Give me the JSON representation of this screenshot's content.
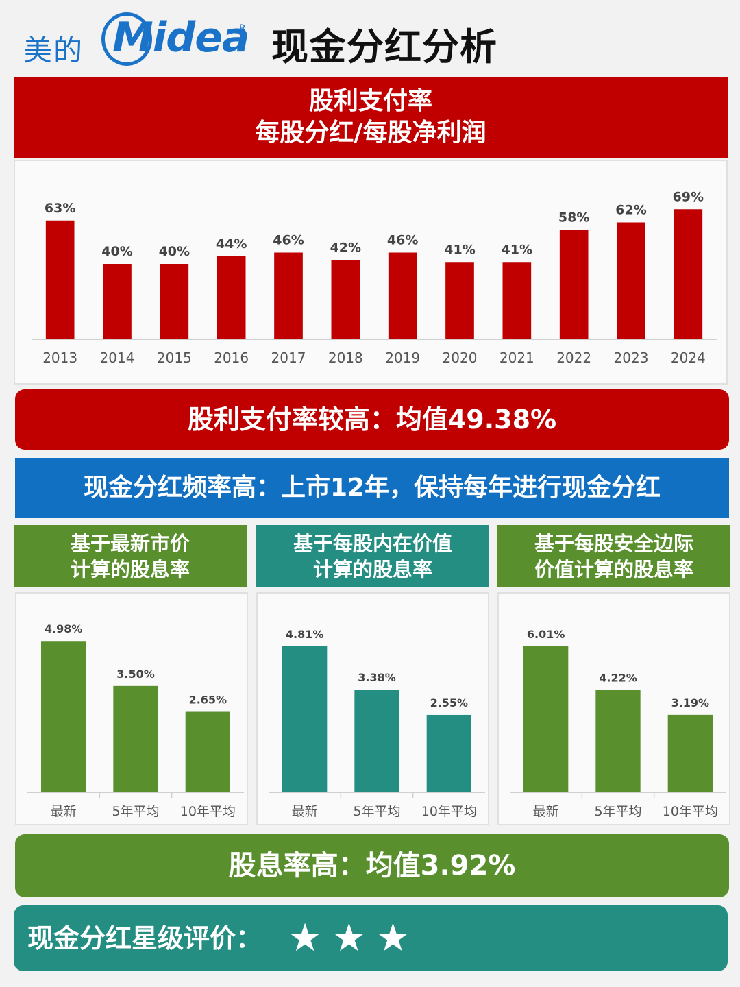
{
  "header": {
    "logo_cn": "美的",
    "logo_en": "Midea",
    "logo_r": "R",
    "title": "现金分红分析"
  },
  "payout_header": {
    "line1": "股利支付率",
    "line2": "每股分红/每股净利润"
  },
  "payout_summary": "股利支付率较高：均值49.38%",
  "frequency_banner": "现金分红频率高：上市12年，保持每年进行现金分红",
  "yield_headers": {
    "market": {
      "line1": "基于最新市价",
      "line2": "计算的股息率"
    },
    "intrinsic": {
      "line1": "基于每股内在价值",
      "line2": "计算的股息率"
    },
    "safety": {
      "line1": "基于每股安全边际",
      "line2": "价值计算的股息率"
    }
  },
  "yield_summary": "股息率高：均值3.92%",
  "rating": {
    "label": "现金分红星级评价：",
    "stars": "★★★",
    "value": 3,
    "max": 3
  },
  "colors": {
    "red": "#c00000",
    "blue": "#1270c3",
    "green": "#5a8f2e",
    "teal": "#248e82",
    "brand_blue": "#1a73c8"
  },
  "chart_data": [
    {
      "type": "bar",
      "categories": [
        "2013",
        "2014",
        "2015",
        "2016",
        "2017",
        "2018",
        "2019",
        "2020",
        "2021",
        "2022",
        "2023",
        "2024"
      ],
      "values": [
        63,
        40,
        40,
        44,
        46,
        42,
        46,
        41,
        41,
        58,
        62,
        69
      ],
      "labels": [
        "63%",
        "40%",
        "40%",
        "44%",
        "46%",
        "42%",
        "46%",
        "41%",
        "41%",
        "58%",
        "62%",
        "69%"
      ],
      "unit": "%",
      "color": "#c00000",
      "ylim": [
        0,
        80
      ],
      "grid": false
    },
    {
      "type": "bar",
      "categories": [
        "最新",
        "5年平均",
        "10年平均"
      ],
      "values": [
        4.98,
        3.5,
        2.65
      ],
      "labels": [
        "4.98%",
        "3.50%",
        "2.65%"
      ],
      "color": "#5a8f2e",
      "ylim": [
        0,
        6
      ]
    },
    {
      "type": "bar",
      "categories": [
        "最新",
        "5年平均",
        "10年平均"
      ],
      "values": [
        4.81,
        3.38,
        2.55
      ],
      "labels": [
        "4.81%",
        "3.38%",
        "2.55%"
      ],
      "color": "#248e82",
      "ylim": [
        0,
        6
      ]
    },
    {
      "type": "bar",
      "categories": [
        "最新",
        "5年平均",
        "10年平均"
      ],
      "values": [
        6.01,
        4.22,
        3.19
      ],
      "labels": [
        "6.01%",
        "4.22%",
        "3.19%"
      ],
      "color": "#5a8f2e",
      "ylim": [
        0,
        7.5
      ]
    }
  ]
}
